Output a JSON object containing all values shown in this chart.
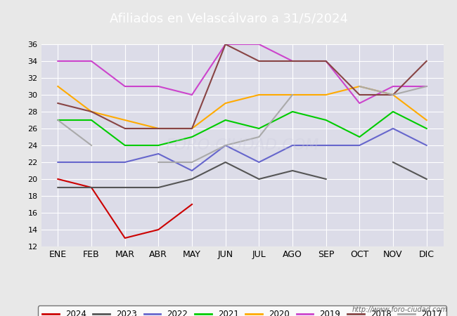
{
  "title": "Afiliados en Velascálvaro a 31/5/2024",
  "ylim": [
    12,
    36
  ],
  "yticks": [
    12,
    14,
    16,
    18,
    20,
    22,
    24,
    26,
    28,
    30,
    32,
    34,
    36
  ],
  "months": [
    "ENE",
    "FEB",
    "MAR",
    "ABR",
    "MAY",
    "JUN",
    "JUL",
    "AGO",
    "SEP",
    "OCT",
    "NOV",
    "DIC"
  ],
  "series": {
    "2024": {
      "color": "#cc0000",
      "data": [
        20,
        19,
        13,
        14,
        17,
        null,
        null,
        null,
        null,
        null,
        null,
        null
      ]
    },
    "2023": {
      "color": "#555555",
      "data": [
        19,
        19,
        19,
        19,
        20,
        22,
        20,
        21,
        20,
        null,
        22,
        20
      ]
    },
    "2022": {
      "color": "#6666cc",
      "data": [
        22,
        22,
        22,
        23,
        21,
        24,
        22,
        24,
        24,
        24,
        26,
        24
      ]
    },
    "2021": {
      "color": "#00cc00",
      "data": [
        27,
        27,
        24,
        24,
        25,
        27,
        26,
        28,
        27,
        25,
        28,
        26
      ]
    },
    "2020": {
      "color": "#ffaa00",
      "data": [
        31,
        28,
        27,
        26,
        26,
        29,
        30,
        30,
        30,
        31,
        30,
        27
      ]
    },
    "2019": {
      "color": "#cc44cc",
      "data": [
        34,
        34,
        31,
        31,
        30,
        36,
        36,
        34,
        34,
        29,
        31,
        31
      ]
    },
    "2018": {
      "color": "#884444",
      "data": [
        29,
        28,
        26,
        26,
        26,
        36,
        34,
        34,
        34,
        30,
        30,
        34
      ]
    },
    "2017": {
      "color": "#aaaaaa",
      "data": [
        27,
        24,
        null,
        22,
        22,
        24,
        25,
        30,
        null,
        31,
        30,
        31
      ]
    }
  },
  "bg_color": "#e8e8e8",
  "plot_bg": "#dcdce8",
  "grid_color": "#ffffff",
  "header_bg": "#5588cc",
  "footer_url": "http://www.foro-ciudad.com",
  "series_order": [
    "2024",
    "2023",
    "2022",
    "2021",
    "2020",
    "2019",
    "2018",
    "2017"
  ]
}
